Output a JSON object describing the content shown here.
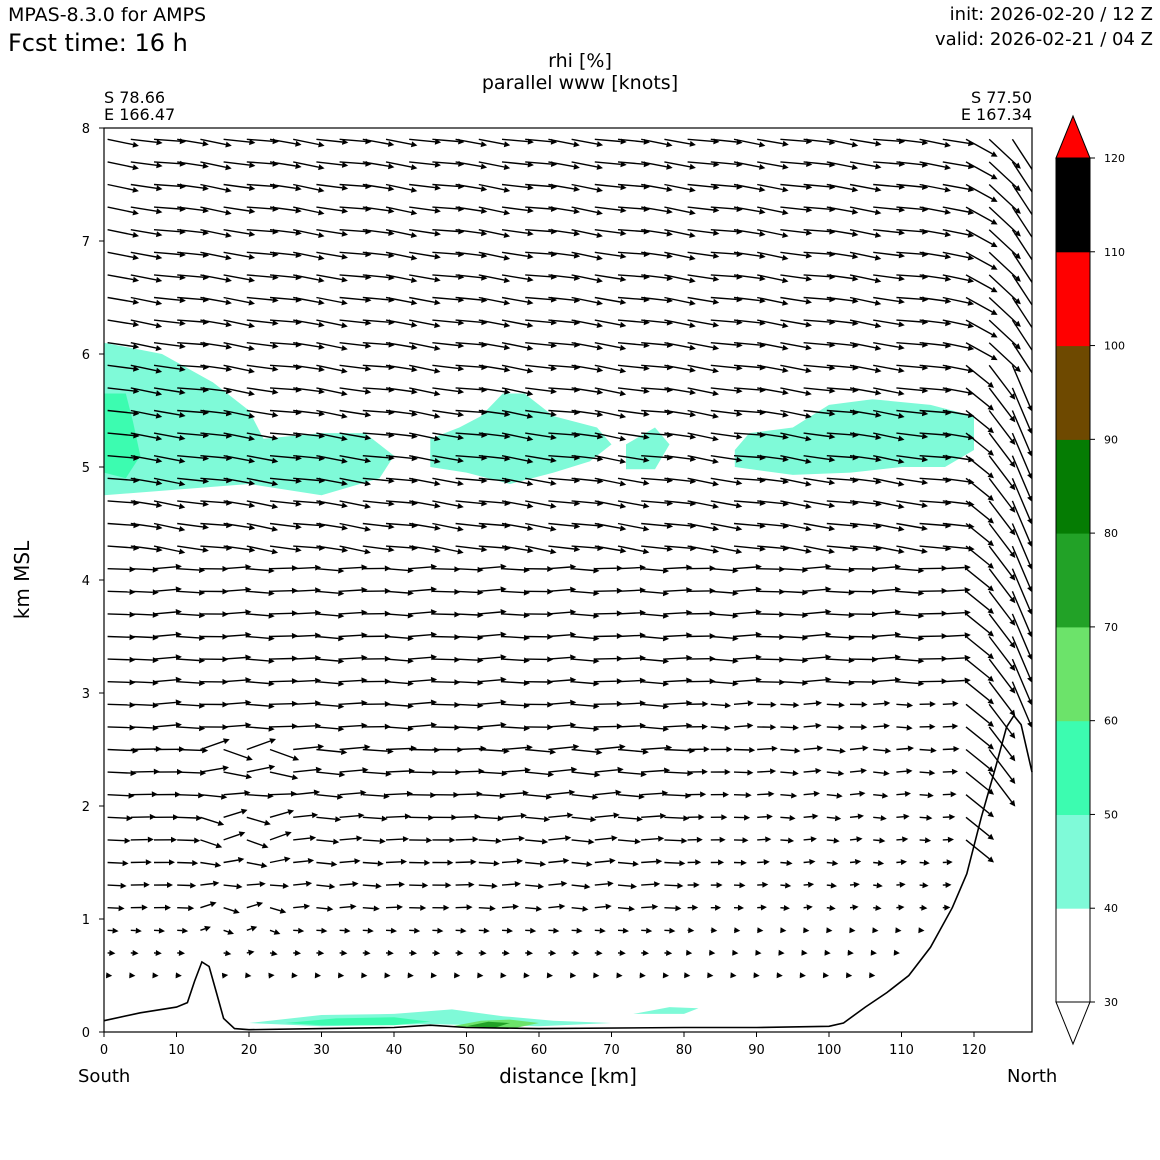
{
  "header": {
    "model": "MPAS-8.3.0 for AMPS",
    "forecast_time": "Fcst time:   16 h",
    "init": "init: 2026-02-20 / 12 Z",
    "valid": "valid: 2026-02-21 / 04 Z"
  },
  "chart_data": {
    "type": "heatmap",
    "title": "rhi [%]",
    "subtitle": "parallel www [knots]",
    "xlabel": "distance [km]",
    "ylabel": "km MSL",
    "xlim": [
      0,
      128
    ],
    "ylim": [
      0,
      8
    ],
    "x_ticks": [
      0,
      10,
      20,
      30,
      40,
      50,
      60,
      70,
      80,
      90,
      100,
      110,
      120
    ],
    "y_ticks": [
      0,
      1,
      2,
      3,
      4,
      5,
      6,
      7,
      8
    ],
    "endpoints": {
      "start_lat": "S 78.66",
      "start_lon": "E 166.47",
      "end_lat": "S 77.50",
      "end_lon": "E 167.34",
      "start_dir": "South",
      "end_dir": "North"
    },
    "colorbar": {
      "levels": [
        30,
        40,
        50,
        60,
        70,
        80,
        90,
        100,
        110,
        120
      ],
      "colors": [
        "#ffffff",
        "#7ffad8",
        "#3cfcb0",
        "#6ce36a",
        "#22a227",
        "#057c03",
        "#6e4900",
        "#ff0000"
      ],
      "extend": "both"
    },
    "terrain": [
      [
        0,
        0.1
      ],
      [
        5,
        0.17
      ],
      [
        10,
        0.22
      ],
      [
        11.5,
        0.26
      ],
      [
        12.5,
        0.45
      ],
      [
        13.5,
        0.62
      ],
      [
        14.5,
        0.58
      ],
      [
        15.5,
        0.35
      ],
      [
        16.5,
        0.12
      ],
      [
        18,
        0.03
      ],
      [
        20,
        0.02
      ],
      [
        30,
        0.03
      ],
      [
        40,
        0.04
      ],
      [
        45,
        0.06
      ],
      [
        50,
        0.04
      ],
      [
        60,
        0.03
      ],
      [
        80,
        0.04
      ],
      [
        90,
        0.04
      ],
      [
        100,
        0.05
      ],
      [
        102,
        0.08
      ],
      [
        105,
        0.22
      ],
      [
        108,
        0.35
      ],
      [
        111,
        0.5
      ],
      [
        114,
        0.75
      ],
      [
        117,
        1.1
      ],
      [
        119,
        1.4
      ],
      [
        121,
        1.9
      ],
      [
        123,
        2.35
      ],
      [
        124.5,
        2.7
      ],
      [
        125.5,
        2.8
      ],
      [
        126.5,
        2.72
      ],
      [
        128,
        2.3
      ]
    ],
    "rhi_regions": [
      {
        "level": 40,
        "polygon": [
          [
            0,
            4.3
          ],
          [
            10,
            4.32
          ],
          [
            20,
            4.28
          ],
          [
            30,
            4.27
          ],
          [
            40,
            4.27
          ],
          [
            50,
            4.25
          ],
          [
            60,
            4.25
          ],
          [
            70,
            4.27
          ],
          [
            80,
            4.27
          ],
          [
            90,
            4.25
          ],
          [
            100,
            4.25
          ],
          [
            110,
            4.27
          ],
          [
            120,
            4.32
          ],
          [
            122,
            4.4
          ],
          [
            123,
            5.2
          ],
          [
            123,
            6.0
          ],
          [
            121,
            6.45
          ],
          [
            115,
            6.45
          ],
          [
            108,
            6.45
          ],
          [
            100,
            6.3
          ],
          [
            97,
            6.15
          ],
          [
            90,
            5.9
          ],
          [
            84,
            5.85
          ],
          [
            78,
            5.92
          ],
          [
            72,
            5.85
          ],
          [
            66,
            5.9
          ],
          [
            60,
            6.0
          ],
          [
            54,
            6.25
          ],
          [
            48,
            6.35
          ],
          [
            45,
            6.2
          ],
          [
            43,
            6.0
          ],
          [
            41,
            5.8
          ],
          [
            38,
            5.83
          ],
          [
            35,
            5.9
          ],
          [
            30,
            6.05
          ],
          [
            26,
            6.02
          ],
          [
            22,
            5.98
          ],
          [
            18,
            6.1
          ],
          [
            13,
            6.35
          ],
          [
            8,
            6.55
          ],
          [
            0,
            6.6
          ]
        ]
      },
      {
        "level": 50,
        "polygon": [
          [
            0,
            4.75
          ],
          [
            10,
            4.8
          ],
          [
            20,
            4.85
          ],
          [
            30,
            4.75
          ],
          [
            38,
            4.9
          ],
          [
            40,
            5.1
          ],
          [
            36,
            5.3
          ],
          [
            30,
            5.3
          ],
          [
            22,
            5.25
          ],
          [
            20,
            5.5
          ],
          [
            15,
            5.75
          ],
          [
            8,
            6.0
          ],
          [
            0,
            6.1
          ]
        ]
      },
      {
        "level": 50,
        "polygon": [
          [
            45,
            5.0
          ],
          [
            50,
            4.95
          ],
          [
            56,
            4.85
          ],
          [
            62,
            4.95
          ],
          [
            67,
            5.05
          ],
          [
            70,
            5.2
          ],
          [
            68,
            5.35
          ],
          [
            62,
            5.45
          ],
          [
            58,
            5.65
          ],
          [
            55,
            5.65
          ],
          [
            52,
            5.45
          ],
          [
            49,
            5.35
          ],
          [
            45,
            5.25
          ]
        ]
      },
      {
        "level": 50,
        "polygon": [
          [
            72,
            4.98
          ],
          [
            76,
            4.98
          ],
          [
            78,
            5.2
          ],
          [
            76,
            5.35
          ],
          [
            72,
            5.2
          ]
        ]
      },
      {
        "level": 50,
        "polygon": [
          [
            87,
            5.0
          ],
          [
            95,
            4.93
          ],
          [
            103,
            4.95
          ],
          [
            110,
            5.0
          ],
          [
            116,
            5.0
          ],
          [
            120,
            5.15
          ],
          [
            120,
            5.45
          ],
          [
            114,
            5.55
          ],
          [
            106,
            5.6
          ],
          [
            100,
            5.55
          ],
          [
            95,
            5.35
          ],
          [
            89,
            5.3
          ],
          [
            87,
            5.15
          ]
        ]
      },
      {
        "level": 60,
        "polygon": [
          [
            0,
            4.95
          ],
          [
            3,
            4.9
          ],
          [
            5,
            5.1
          ],
          [
            4,
            5.4
          ],
          [
            3,
            5.65
          ],
          [
            0,
            5.65
          ]
        ]
      },
      {
        "level": 40,
        "polygon": [
          [
            0,
            0.15
          ],
          [
            8,
            0.25
          ],
          [
            10,
            0.26
          ],
          [
            11,
            0.27
          ],
          [
            11.5,
            0.26
          ],
          [
            5,
            0.17
          ],
          [
            0,
            0.1
          ]
        ]
      },
      {
        "level": 40,
        "polygon": [
          [
            17,
            0.06
          ],
          [
            18,
            0.18
          ],
          [
            25,
            0.25
          ],
          [
            35,
            0.24
          ],
          [
            45,
            0.28
          ],
          [
            52,
            0.22
          ],
          [
            60,
            0.16
          ],
          [
            67,
            0.12
          ],
          [
            70,
            0.22
          ],
          [
            80,
            0.26
          ],
          [
            86,
            0.22
          ],
          [
            85,
            0.15
          ],
          [
            94,
            0.16
          ],
          [
            103,
            0.17
          ],
          [
            105,
            0.2
          ],
          [
            101,
            0.06
          ],
          [
            90,
            0.05
          ],
          [
            60,
            0.04
          ],
          [
            45,
            0.07
          ],
          [
            30,
            0.04
          ],
          [
            20,
            0.04
          ]
        ]
      },
      {
        "level": 50,
        "polygon": [
          [
            20,
            0.08
          ],
          [
            30,
            0.15
          ],
          [
            40,
            0.16
          ],
          [
            48,
            0.2
          ],
          [
            55,
            0.14
          ],
          [
            62,
            0.1
          ],
          [
            70,
            0.08
          ],
          [
            60,
            0.05
          ],
          [
            45,
            0.07
          ],
          [
            30,
            0.05
          ]
        ]
      },
      {
        "level": 50,
        "polygon": [
          [
            73,
            0.16
          ],
          [
            78,
            0.22
          ],
          [
            82,
            0.21
          ],
          [
            80,
            0.16
          ]
        ]
      },
      {
        "level": 60,
        "polygon": [
          [
            25,
            0.08
          ],
          [
            32,
            0.12
          ],
          [
            40,
            0.13
          ],
          [
            45,
            0.09
          ],
          [
            40,
            0.06
          ],
          [
            30,
            0.06
          ]
        ]
      },
      {
        "level": 70,
        "polygon": [
          [
            48,
            0.05
          ],
          [
            52,
            0.1
          ],
          [
            56,
            0.11
          ],
          [
            60,
            0.08
          ],
          [
            57,
            0.04
          ],
          [
            50,
            0.04
          ]
        ]
      },
      {
        "level": 80,
        "polygon": [
          [
            50,
            0.05
          ],
          [
            53,
            0.09
          ],
          [
            56,
            0.08
          ],
          [
            54,
            0.04
          ]
        ]
      }
    ],
    "wind_rows_km": [
      0.5,
      0.7,
      0.9,
      1.1,
      1.3,
      1.5,
      1.7,
      1.9,
      2.1,
      2.3,
      2.5,
      2.7,
      2.9,
      3.1,
      3.3,
      3.5,
      3.7,
      3.9,
      4.1,
      4.3,
      4.5,
      4.7,
      4.9,
      5.1,
      5.3,
      5.5,
      5.7,
      5.9,
      6.1,
      6.3,
      6.5,
      6.7,
      6.9,
      7.1,
      7.3,
      7.5,
      7.7,
      7.9
    ],
    "wind_col_spacing_km": 3.2,
    "wind_note": "vectors point toward North (right) in the free atmosphere, strongly downslope near x=120-128 km"
  }
}
